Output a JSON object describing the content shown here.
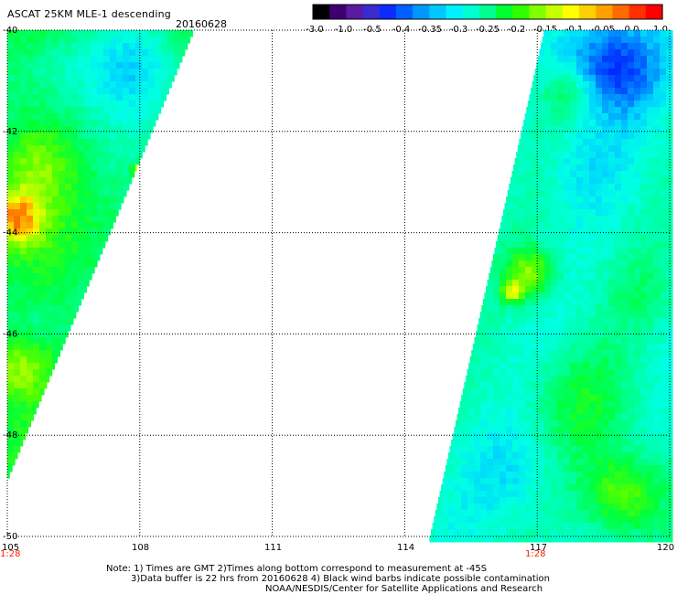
{
  "header": {
    "title": "ASCAT 25KM MLE-1 descending",
    "date": "20160628"
  },
  "colorbar": {
    "labels": [
      "-3.0",
      "-1.0",
      "-0.5",
      "-0.4",
      "-0.35",
      "-0.3",
      "-0.25",
      "-0.2",
      "-0.15",
      "-0.1",
      "-0.05",
      "0.0",
      "1.0"
    ],
    "colors": [
      "#000000",
      "#3c0070",
      "#5a1aa0",
      "#3a2ad0",
      "#0a2cff",
      "#0060ff",
      "#0098ff",
      "#00c8ff",
      "#00f0ff",
      "#00ffd0",
      "#00ff90",
      "#00ff30",
      "#30ff00",
      "#80ff00",
      "#c8ff00",
      "#ffff00",
      "#ffd000",
      "#ffa000",
      "#ff6a00",
      "#ff3000",
      "#ff0000"
    ]
  },
  "map": {
    "lat_labels": [
      "-40",
      "-42",
      "-44",
      "-46",
      "-48",
      "-50"
    ],
    "lon_labels": [
      "105",
      "108",
      "111",
      "114",
      "117",
      "120"
    ],
    "time_labels": [
      "1:28",
      "1:28"
    ],
    "time_color": "#ff2000",
    "lat_range": [
      -50,
      -40
    ],
    "lon_range": [
      105,
      120
    ]
  },
  "notes": {
    "line1": "Note: 1) Times are GMT 2)Times along bottom correspond to measurement at -45S",
    "line2": "3)Data buffer is 22 hrs from 20160628 4) Black wind barbs indicate possible contamination",
    "line3": "NOAA/NESDIS/Center for Satellite Applications and Research"
  }
}
